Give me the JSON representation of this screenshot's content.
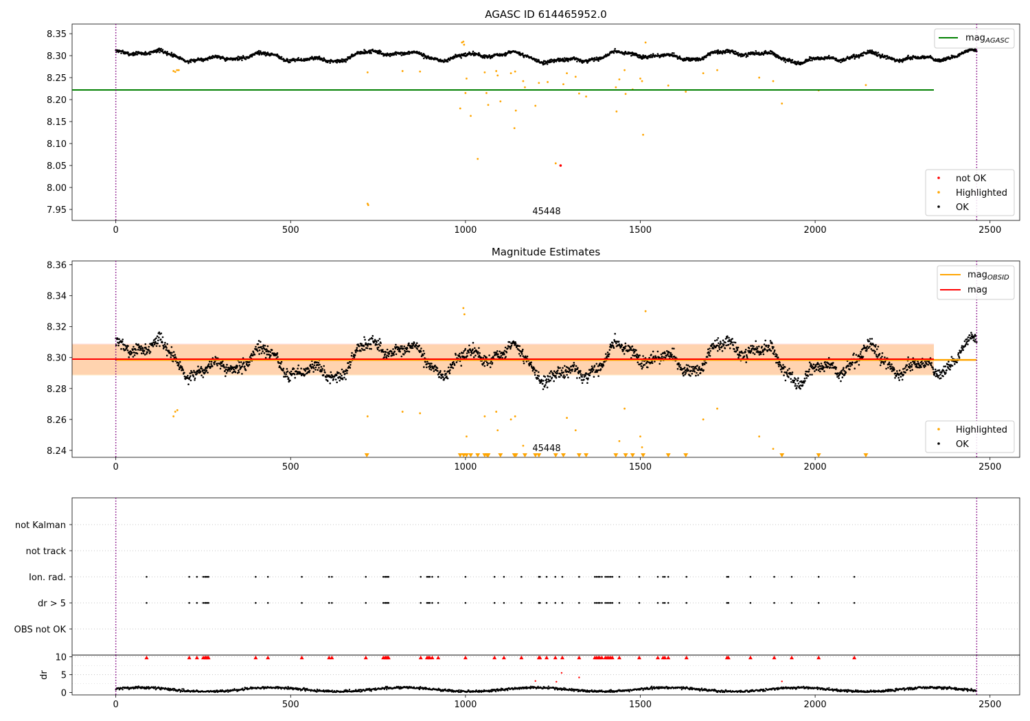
{
  "chart_data": [
    {
      "type": "scatter",
      "title": "AGASC ID 614465952.0",
      "annotation": "45448",
      "xlim": [
        -125,
        2585
      ],
      "ylim": [
        7.925,
        8.372
      ],
      "x_ticks": [
        0,
        500,
        1000,
        1500,
        2000,
        2500
      ],
      "y_ticks": [
        7.95,
        8.0,
        8.05,
        8.1,
        8.15,
        8.2,
        8.25,
        8.3,
        8.35
      ],
      "vlines": [
        0,
        2462
      ],
      "grid": false,
      "mag_agasc": 8.222,
      "legends": {
        "upper_right": [
          {
            "label": "mag",
            "sub": "AGASC",
            "color": "#008000",
            "kind": "line"
          }
        ],
        "lower_right": [
          {
            "label": "not OK",
            "color": "#ff0000",
            "kind": "dot"
          },
          {
            "label": "Highlighted",
            "color": "#ffa500",
            "kind": "dot"
          },
          {
            "label": "OK",
            "color": "#000000",
            "kind": "dot"
          }
        ]
      },
      "series": [
        {
          "name": "OK",
          "color": "#000000",
          "baseline": 8.298,
          "amplitude": 0.012,
          "noise": 0.004
        },
        {
          "name": "Highlighted",
          "color": "#ffa500",
          "points": [
            [
              720,
              7.963
            ],
            [
              722,
              7.96
            ],
            [
              990,
              8.33
            ],
            [
              994,
              8.332
            ],
            [
              996,
              8.325
            ],
            [
              985,
              8.18
            ],
            [
              1000,
              8.215
            ],
            [
              1003,
              8.248
            ],
            [
              1015,
              8.163
            ],
            [
              1035,
              8.065
            ],
            [
              1055,
              8.262
            ],
            [
              1060,
              8.215
            ],
            [
              1065,
              8.188
            ],
            [
              1088,
              8.265
            ],
            [
              1092,
              8.255
            ],
            [
              1100,
              8.196
            ],
            [
              1130,
              8.26
            ],
            [
              1142,
              8.264
            ],
            [
              1144,
              8.175
            ],
            [
              1140,
              8.135
            ],
            [
              1165,
              8.242
            ],
            [
              1170,
              8.228
            ],
            [
              1200,
              8.186
            ],
            [
              1210,
              8.238
            ],
            [
              1235,
              8.24
            ],
            [
              1258,
              8.055
            ],
            [
              1280,
              8.235
            ],
            [
              1290,
              8.26
            ],
            [
              1315,
              8.252
            ],
            [
              1325,
              8.214
            ],
            [
              1345,
              8.207
            ],
            [
              1430,
              8.228
            ],
            [
              1432,
              8.173
            ],
            [
              1440,
              8.246
            ],
            [
              1455,
              8.267
            ],
            [
              1458,
              8.213
            ],
            [
              1478,
              8.223
            ],
            [
              1500,
              8.248
            ],
            [
              1505,
              8.242
            ],
            [
              1508,
              8.12
            ],
            [
              1515,
              8.33
            ],
            [
              1580,
              8.232
            ],
            [
              1630,
              8.218
            ],
            [
              1680,
              8.26
            ],
            [
              1720,
              8.267
            ],
            [
              1840,
              8.25
            ],
            [
              1880,
              8.242
            ],
            [
              1905,
              8.191
            ],
            [
              2010,
              8.221
            ],
            [
              2145,
              8.233
            ],
            [
              165,
              8.265
            ],
            [
              170,
              8.263
            ],
            [
              175,
              8.267
            ],
            [
              180,
              8.267
            ],
            [
              720,
              8.262
            ],
            [
              820,
              8.265
            ],
            [
              870,
              8.264
            ]
          ]
        },
        {
          "name": "not OK",
          "color": "#ff0000",
          "points": [
            [
              1272,
              8.05
            ]
          ]
        }
      ]
    },
    {
      "type": "scatter",
      "title": "Magnitude Estimates",
      "annotation": "45448",
      "xlim": [
        -125,
        2585
      ],
      "ylim": [
        8.2355,
        8.3625
      ],
      "x_ticks": [
        0,
        500,
        1000,
        1500,
        2000,
        2500
      ],
      "y_ticks": [
        8.24,
        8.26,
        8.28,
        8.3,
        8.32,
        8.34,
        8.36
      ],
      "vlines": [
        0,
        2462
      ],
      "mag_obsid": 8.2985,
      "mag": 8.299,
      "band_obsid": [
        8.2885,
        8.3085
      ],
      "band_mag": [
        8.289,
        8.309
      ],
      "band_extent": [
        -125,
        2585
      ],
      "legends": {
        "upper_right": [
          {
            "label": "mag",
            "sub": "OBSID",
            "color": "#ffa500",
            "kind": "line"
          },
          {
            "label": "mag",
            "sub": "",
            "color": "#ff0000",
            "kind": "line"
          }
        ],
        "lower_right": [
          {
            "label": "Highlighted",
            "color": "#ffa500",
            "kind": "dot"
          },
          {
            "label": "OK",
            "color": "#000000",
            "kind": "dot"
          }
        ]
      },
      "series": [
        {
          "name": "OK",
          "color": "#000000",
          "baseline": 8.298,
          "amplitude": 0.012,
          "noise": 0.004
        },
        {
          "name": "Highlighted",
          "color": "#ffa500",
          "points": [
            [
              994,
              8.332
            ],
            [
              997,
              8.328
            ],
            [
              720,
              8.262
            ],
            [
              165,
              8.262
            ],
            [
              170,
              8.265
            ],
            [
              176,
              8.266
            ],
            [
              820,
              8.265
            ],
            [
              870,
              8.264
            ],
            [
              1003,
              8.249
            ],
            [
              1055,
              8.262
            ],
            [
              1088,
              8.265
            ],
            [
              1092,
              8.253
            ],
            [
              1130,
              8.26
            ],
            [
              1142,
              8.262
            ],
            [
              1165,
              8.243
            ],
            [
              1290,
              8.261
            ],
            [
              1315,
              8.253
            ],
            [
              1440,
              8.246
            ],
            [
              1455,
              8.267
            ],
            [
              1500,
              8.249
            ],
            [
              1505,
              8.242
            ],
            [
              1515,
              8.33
            ],
            [
              1680,
              8.26
            ],
            [
              1720,
              8.267
            ],
            [
              1840,
              8.249
            ],
            [
              1880,
              8.241
            ]
          ]
        },
        {
          "name": "Highlighted (below range)",
          "color": "#ffa500",
          "marker": "triangle-down",
          "points": [
            [
              718,
              8.2368
            ],
            [
              985,
              8.2368
            ],
            [
              995,
              8.2368
            ],
            [
              1003,
              8.2368
            ],
            [
              1015,
              8.2368
            ],
            [
              1035,
              8.2368
            ],
            [
              1055,
              8.2368
            ],
            [
              1062,
              8.2368
            ],
            [
              1065,
              8.2368
            ],
            [
              1100,
              8.2368
            ],
            [
              1140,
              8.2368
            ],
            [
              1144,
              8.2368
            ],
            [
              1170,
              8.2368
            ],
            [
              1200,
              8.2368
            ],
            [
              1210,
              8.2368
            ],
            [
              1258,
              8.2368
            ],
            [
              1280,
              8.2368
            ],
            [
              1325,
              8.2368
            ],
            [
              1345,
              8.2368
            ],
            [
              1430,
              8.2368
            ],
            [
              1458,
              8.2368
            ],
            [
              1478,
              8.2368
            ],
            [
              1508,
              8.2368
            ],
            [
              1580,
              8.2368
            ],
            [
              1630,
              8.2368
            ],
            [
              1905,
              8.2368
            ],
            [
              2010,
              8.2368
            ],
            [
              2145,
              8.2368
            ]
          ]
        }
      ]
    },
    {
      "type": "scatter",
      "title": "",
      "xlim": [
        -125,
        2585
      ],
      "categories": [
        "OBS not OK",
        "dr > 5",
        "Ion. rad.",
        "not track",
        "not Kalman"
      ],
      "flag_times": [
        88,
        210,
        232,
        250,
        255,
        258,
        262,
        265,
        400,
        435,
        532,
        610,
        618,
        715,
        765,
        770,
        773,
        777,
        780,
        872,
        890,
        894,
        898,
        905,
        922,
        1000,
        1083,
        1110,
        1160,
        1210,
        1213,
        1232,
        1257,
        1277,
        1325,
        1370,
        1375,
        1380,
        1384,
        1390,
        1400,
        1405,
        1410,
        1415,
        1420,
        1440,
        1497,
        1550,
        1565,
        1570,
        1580,
        1632,
        1748,
        1752,
        1815,
        1883,
        1933,
        2010,
        2112
      ],
      "flags": {
        "OBS not OK": [],
        "dr > 5": "flag_times",
        "Ion. rad.": "flag_times",
        "not track": [],
        "not Kalman": []
      },
      "vlines": [
        0,
        2462
      ]
    },
    {
      "type": "scatter",
      "title": "",
      "xlim": [
        -125,
        2585
      ],
      "ylim": [
        -0.7,
        10.5
      ],
      "x_ticks": [
        0,
        500,
        1000,
        1500,
        2000,
        2500
      ],
      "y_ticks": [
        0,
        5,
        10
      ],
      "ylabel": "dr",
      "vlines": [
        0,
        2462
      ],
      "series": [
        {
          "name": "dr",
          "color": "#000000",
          "baseline": 0.8,
          "amplitude": 0.7,
          "noise": 0.35
        },
        {
          "name": "dr flagged",
          "color": "#ff0000",
          "points": [
            [
              1200,
              3.2
            ],
            [
              1260,
              3.0
            ],
            [
              1275,
              5.5
            ],
            [
              1325,
              4.2
            ],
            [
              1905,
              3.1
            ]
          ]
        },
        {
          "name": "dr > 10 (clipped)",
          "color": "#ff0000",
          "marker": "triangle-up",
          "at": 9.8,
          "times": "flag_times"
        }
      ]
    }
  ]
}
